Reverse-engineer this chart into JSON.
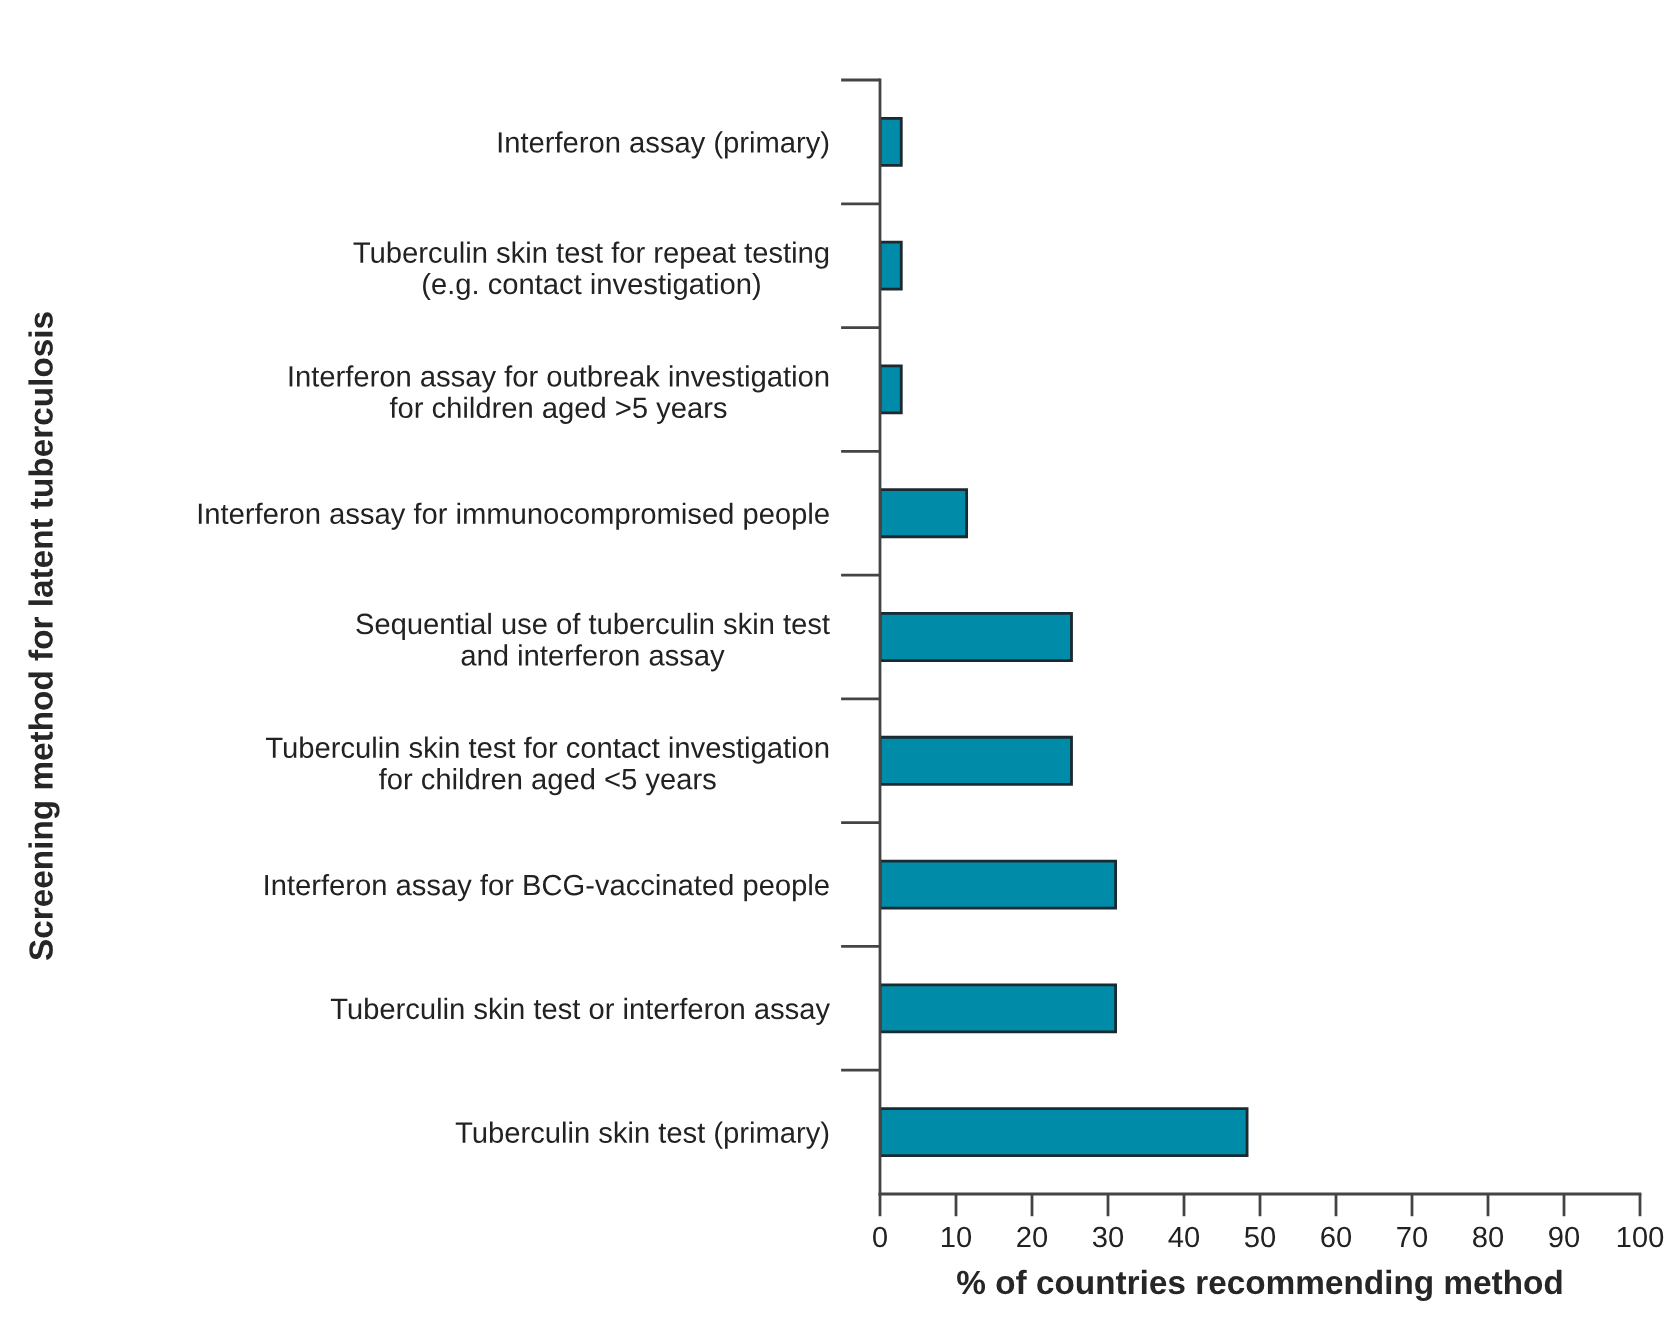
{
  "chart_data": {
    "type": "bar",
    "orientation": "horizontal",
    "categories": [
      "Interferon assay (primary)",
      "Tuberculin skin test for repeat testing\n(e.g. contact investigation)",
      "Interferon assay for outbreak investigation\nfor children aged >5 years",
      "Interferon assay for immunocompromised people",
      "Sequential use of tuberculin skin test\nand interferon assay",
      "Tuberculin skin test for contact investigation\nfor children aged <5 years",
      "Interferon assay for BCG-vaccinated people",
      "Tuberculin skin test or interferon assay",
      "Tuberculin skin test (primary)"
    ],
    "values": [
      2.8,
      2.8,
      2.8,
      11.4,
      25.2,
      25.2,
      31.0,
      31.0,
      48.3
    ],
    "color": "#008ba8",
    "xlim": [
      0,
      100
    ],
    "xticks": [
      0,
      10,
      20,
      30,
      40,
      50,
      60,
      70,
      80,
      90,
      100
    ],
    "xlabel": "% of countries recommending method",
    "ylabel": "Screening method for latent tuberculosis",
    "grid": false,
    "legend": false
  }
}
